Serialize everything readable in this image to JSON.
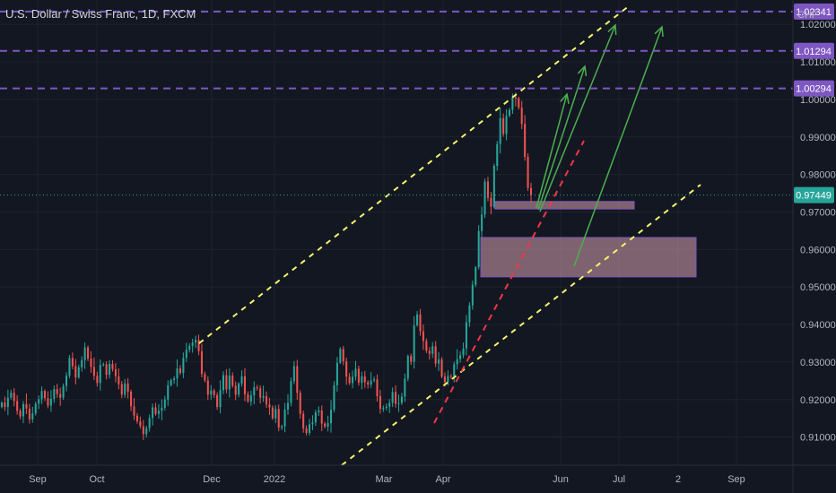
{
  "header": {
    "title": "U.S. Dollar / Swiss Franc, 1D, FXCM"
  },
  "y_axis": {
    "currency": "CHF",
    "ticks": [
      "0.91000",
      "0.92000",
      "0.93000",
      "0.94000",
      "0.95000",
      "0.96000",
      "0.97000",
      "0.98000",
      "0.99000",
      "1.00000",
      "1.01000",
      "1.02000"
    ]
  },
  "x_axis": {
    "ticks": [
      "Sep",
      "Oct",
      "Dec",
      "2022",
      "Mar",
      "Apr",
      "Jun",
      "Jul",
      "2",
      "Sep"
    ]
  },
  "price_labels": [
    {
      "text": "1.02341",
      "value": 1.02341,
      "color": "#7e57c2"
    },
    {
      "text": "1.01294",
      "value": 1.01294,
      "color": "#7e57c2"
    },
    {
      "text": "1.00294",
      "value": 1.00294,
      "color": "#7e57c2"
    },
    {
      "text": "0.97449",
      "value": 0.97449,
      "color": "#26a69a"
    }
  ],
  "colors": {
    "background": "#131722",
    "grid": "#1e222d",
    "text": "#b2b5be",
    "up": "#26a69a",
    "down": "#ef5350",
    "level_line": "#7e57c2",
    "channel": "#f5f56a",
    "trendline": "#f23645",
    "arrow": "#4caf50",
    "zone_fill": "#d8a0b0",
    "zone_border": "#7e57c2"
  },
  "chart_data": {
    "type": "candlestick",
    "title": "U.S. Dollar / Swiss Franc, 1D, FXCM",
    "symbol": "USDCHF",
    "interval": "1D",
    "xlabel": "",
    "ylabel": "CHF",
    "ylim": [
      0.9025,
      1.0265
    ],
    "x_ticks": [
      "Sep",
      "Oct",
      "Dec",
      "2022",
      "Mar",
      "Apr",
      "Jun",
      "Jul",
      "2",
      "Sep"
    ],
    "grid": true,
    "closes": [
      0.9192,
      0.918,
      0.9205,
      0.9218,
      0.9196,
      0.917,
      0.9155,
      0.9188,
      0.9176,
      0.9147,
      0.9163,
      0.9189,
      0.9201,
      0.9223,
      0.9204,
      0.9184,
      0.9202,
      0.9228,
      0.9215,
      0.9205,
      0.9236,
      0.9264,
      0.9311,
      0.9289,
      0.9259,
      0.9286,
      0.9305,
      0.9339,
      0.9309,
      0.9287,
      0.9263,
      0.9244,
      0.9292,
      0.9294,
      0.9266,
      0.9295,
      0.9281,
      0.9262,
      0.9241,
      0.9213,
      0.9243,
      0.9221,
      0.9182,
      0.9157,
      0.9142,
      0.9129,
      0.9108,
      0.9124,
      0.9151,
      0.9179,
      0.9162,
      0.917,
      0.9178,
      0.92,
      0.9238,
      0.9252,
      0.9256,
      0.9283,
      0.9271,
      0.9311,
      0.9333,
      0.9343,
      0.9352,
      0.9359,
      0.9329,
      0.9268,
      0.9251,
      0.9213,
      0.9224,
      0.9212,
      0.918,
      0.9225,
      0.9265,
      0.9227,
      0.9264,
      0.9237,
      0.9213,
      0.9243,
      0.9262,
      0.9214,
      0.9195,
      0.9211,
      0.9233,
      0.923,
      0.9205,
      0.9209,
      0.9187,
      0.9179,
      0.915,
      0.9175,
      0.9125,
      0.9129,
      0.9173,
      0.9191,
      0.9249,
      0.9289,
      0.9218,
      0.9162,
      0.9123,
      0.9111,
      0.9134,
      0.9139,
      0.9166,
      0.9171,
      0.9136,
      0.9128,
      0.9137,
      0.9173,
      0.9238,
      0.9298,
      0.9335,
      0.9302,
      0.9261,
      0.9244,
      0.9261,
      0.9282,
      0.9245,
      0.9262,
      0.9246,
      0.924,
      0.9251,
      0.9254,
      0.9209,
      0.9175,
      0.9178,
      0.9181,
      0.9191,
      0.922,
      0.9189,
      0.9191,
      0.9208,
      0.9256,
      0.9316,
      0.9301,
      0.9398,
      0.9427,
      0.9382,
      0.9356,
      0.933,
      0.9322,
      0.9342,
      0.9296,
      0.9307,
      0.9261,
      0.9247,
      0.9263,
      0.9262,
      0.9294,
      0.9308,
      0.9318,
      0.9336,
      0.9406,
      0.9451,
      0.9506,
      0.9553,
      0.9649,
      0.9693,
      0.9781,
      0.9738,
      0.9714,
      0.9823,
      0.9881,
      0.995,
      0.9908,
      0.9956,
      0.9972,
      1.0006,
      1.0003,
      0.9978,
      0.9935,
      0.9847,
      0.9764,
      0.9745
    ],
    "key_levels": [
      1.02341,
      1.01294,
      1.00294
    ],
    "last_price": 0.97449,
    "zones": [
      {
        "name": "upper-zone",
        "from": 0.9708,
        "to": 0.9728
      },
      {
        "name": "lower-zone",
        "from": 0.9527,
        "to": 0.9632
      }
    ]
  }
}
